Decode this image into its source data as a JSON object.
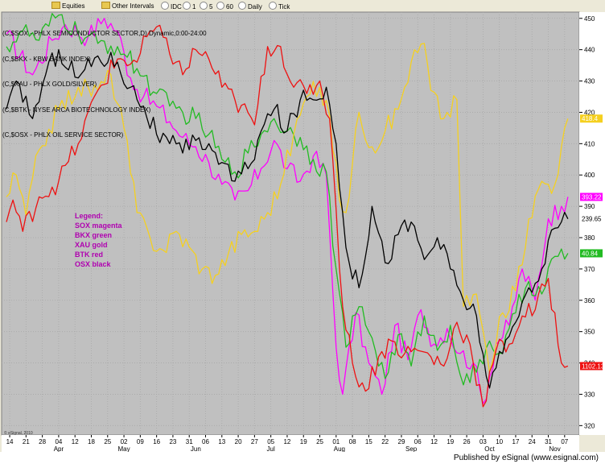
{
  "toolbar": {
    "equities": "Equities",
    "other_intervals": "Other Intervals",
    "idc": "IDC",
    "i1": "1",
    "i5": "5",
    "i60": "60",
    "daily": "Daily",
    "tick": "Tick"
  },
  "header_lines": [
    "(C,$SOX - PHLX SEMICONDUCTOR SECTOR,D) Dynamic,0:00-24:00",
    "(C,$BKX - KBW BANK INDEX)",
    "(C,$XAU - PHLX GOLD/SILVER)",
    "(C,$BTK - NYSE ARCA BIOTECHNOLOGY INDEX)",
    "(C,$OSX - PHLX OIL SERVICE SECTOR)"
  ],
  "legend": {
    "title": "Legend:",
    "items": [
      "SOX magenta",
      "BKX green",
      "XAU gold",
      "BTK red",
      "OSX black"
    ]
  },
  "signature": "© eSignal, 2010",
  "footer": "Published by eSignal (www.esignal.com)",
  "colors": {
    "plot_bg": "#c0c0c0",
    "SOX": "#ff00ff",
    "BKX": "#22bb22",
    "XAU": "#f5d020",
    "BTK": "#ee1111",
    "OSX": "#000000"
  },
  "chart_data": {
    "type": "line",
    "ylim": [
      317,
      452
    ],
    "y_ticks": [
      320,
      330,
      340,
      350,
      360,
      370,
      380,
      390,
      400,
      410,
      420,
      430,
      440,
      450
    ],
    "x_tick_labels": [
      "14",
      "21",
      "28",
      "04",
      "12",
      "18",
      "25",
      "02",
      "09",
      "16",
      "23",
      "31",
      "06",
      "13",
      "20",
      "27",
      "05",
      "12",
      "19",
      "25",
      "01",
      "08",
      "15",
      "22",
      "29",
      "06",
      "12",
      "19",
      "26",
      "03",
      "10",
      "17",
      "24",
      "31",
      "07"
    ],
    "x_tick_positions": [
      1,
      6,
      11,
      16,
      21,
      26,
      31,
      36,
      41,
      46,
      51,
      56,
      61,
      66,
      71,
      76,
      81,
      86,
      91,
      96,
      101,
      106,
      111,
      116,
      121,
      126,
      131,
      136,
      141,
      146,
      151,
      156,
      161,
      166,
      171
    ],
    "month_labels": [
      {
        "label": "Apr",
        "at": 16
      },
      {
        "label": "May",
        "at": 36
      },
      {
        "label": "Jun",
        "at": 58
      },
      {
        "label": "Jul",
        "at": 81
      },
      {
        "label": "Aug",
        "at": 102
      },
      {
        "label": "Sep",
        "at": 124
      },
      {
        "label": "Oct",
        "at": 148
      },
      {
        "label": "Nov",
        "at": 168
      }
    ],
    "x_range": [
      0,
      174
    ],
    "series": [
      {
        "name": "SOX",
        "color": "#ff00ff",
        "end_label": "393.22",
        "points": [
          [
            0,
            445
          ],
          [
            8,
            432
          ],
          [
            14,
            443
          ],
          [
            18,
            448
          ],
          [
            25,
            444
          ],
          [
            30,
            450
          ],
          [
            34,
            446
          ],
          [
            38,
            431
          ],
          [
            42,
            425
          ],
          [
            46,
            422
          ],
          [
            50,
            417
          ],
          [
            54,
            412
          ],
          [
            58,
            409
          ],
          [
            62,
            404
          ],
          [
            66,
            397
          ],
          [
            70,
            392
          ],
          [
            74,
            395
          ],
          [
            78,
            402
          ],
          [
            82,
            411
          ],
          [
            86,
            402
          ],
          [
            90,
            398
          ],
          [
            94,
            406
          ],
          [
            98,
            400
          ],
          [
            101,
            345
          ],
          [
            103,
            330
          ],
          [
            107,
            356
          ],
          [
            111,
            340
          ],
          [
            115,
            330
          ],
          [
            119,
            352
          ],
          [
            123,
            341
          ],
          [
            127,
            357
          ],
          [
            131,
            346
          ],
          [
            135,
            351
          ],
          [
            139,
            343
          ],
          [
            143,
            340
          ],
          [
            146,
            327
          ],
          [
            150,
            346
          ],
          [
            154,
            352
          ],
          [
            158,
            370
          ],
          [
            162,
            360
          ],
          [
            166,
            386
          ],
          [
            170,
            390
          ],
          [
            172,
            393
          ]
        ]
      },
      {
        "name": "BKX",
        "color": "#22bb22",
        "end_label": "40.84",
        "points": [
          [
            0,
            441
          ],
          [
            5,
            446
          ],
          [
            10,
            443
          ],
          [
            16,
            451
          ],
          [
            22,
            445
          ],
          [
            28,
            442
          ],
          [
            34,
            441
          ],
          [
            40,
            434
          ],
          [
            46,
            426
          ],
          [
            50,
            422
          ],
          [
            54,
            420
          ],
          [
            58,
            418
          ],
          [
            62,
            413
          ],
          [
            66,
            405
          ],
          [
            70,
            401
          ],
          [
            74,
            407
          ],
          [
            78,
            413
          ],
          [
            82,
            418
          ],
          [
            86,
            414
          ],
          [
            90,
            412
          ],
          [
            94,
            405
          ],
          [
            98,
            401
          ],
          [
            101,
            370
          ],
          [
            104,
            345
          ],
          [
            108,
            358
          ],
          [
            112,
            348
          ],
          [
            116,
            335
          ],
          [
            120,
            349
          ],
          [
            124,
            339
          ],
          [
            128,
            355
          ],
          [
            132,
            344
          ],
          [
            136,
            352
          ],
          [
            140,
            333
          ],
          [
            144,
            337
          ],
          [
            148,
            347
          ],
          [
            152,
            343
          ],
          [
            156,
            356
          ],
          [
            160,
            366
          ],
          [
            164,
            362
          ],
          [
            168,
            374
          ],
          [
            172,
            375
          ]
        ]
      },
      {
        "name": "XAU",
        "color": "#f5d020",
        "end_label": "418.4",
        "points": [
          [
            0,
            393
          ],
          [
            3,
            400
          ],
          [
            6,
            387
          ],
          [
            10,
            408
          ],
          [
            16,
            421
          ],
          [
            22,
            428
          ],
          [
            28,
            427
          ],
          [
            32,
            432
          ],
          [
            36,
            415
          ],
          [
            40,
            388
          ],
          [
            44,
            380
          ],
          [
            48,
            376
          ],
          [
            52,
            382
          ],
          [
            56,
            377
          ],
          [
            60,
            370
          ],
          [
            64,
            368
          ],
          [
            68,
            375
          ],
          [
            72,
            381
          ],
          [
            76,
            382
          ],
          [
            80,
            388
          ],
          [
            84,
            397
          ],
          [
            88,
            413
          ],
          [
            92,
            425
          ],
          [
            96,
            428
          ],
          [
            99,
            419
          ],
          [
            102,
            392
          ],
          [
            104,
            388
          ],
          [
            108,
            420
          ],
          [
            112,
            409
          ],
          [
            116,
            414
          ],
          [
            120,
            421
          ],
          [
            124,
            436
          ],
          [
            128,
            442
          ],
          [
            130,
            427
          ],
          [
            134,
            418
          ],
          [
            138,
            424
          ],
          [
            140,
            358
          ],
          [
            144,
            362
          ],
          [
            148,
            337
          ],
          [
            152,
            356
          ],
          [
            156,
            363
          ],
          [
            160,
            386
          ],
          [
            164,
            398
          ],
          [
            168,
            397
          ],
          [
            170,
            409
          ],
          [
            172,
            418
          ]
        ]
      },
      {
        "name": "BTK",
        "color": "#ee1111",
        "end_label": "1102.13",
        "points": [
          [
            0,
            385
          ],
          [
            2,
            392
          ],
          [
            5,
            382
          ],
          [
            10,
            393
          ],
          [
            16,
            398
          ],
          [
            22,
            410
          ],
          [
            28,
            427
          ],
          [
            34,
            437
          ],
          [
            40,
            436
          ],
          [
            44,
            446
          ],
          [
            48,
            444
          ],
          [
            54,
            432
          ],
          [
            58,
            440
          ],
          [
            62,
            437
          ],
          [
            66,
            428
          ],
          [
            70,
            424
          ],
          [
            76,
            416
          ],
          [
            80,
            441
          ],
          [
            84,
            441
          ],
          [
            88,
            428
          ],
          [
            92,
            426
          ],
          [
            96,
            430
          ],
          [
            99,
            418
          ],
          [
            101,
            389
          ],
          [
            103,
            358
          ],
          [
            106,
            340
          ],
          [
            110,
            331
          ],
          [
            114,
            342
          ],
          [
            118,
            347
          ],
          [
            122,
            343
          ],
          [
            126,
            344
          ],
          [
            130,
            342
          ],
          [
            134,
            339
          ],
          [
            138,
            353
          ],
          [
            142,
            346
          ],
          [
            146,
            326
          ],
          [
            150,
            344
          ],
          [
            154,
            346
          ],
          [
            158,
            355
          ],
          [
            162,
            357
          ],
          [
            166,
            367
          ],
          [
            170,
            340
          ],
          [
            172,
            339
          ]
        ]
      },
      {
        "name": "OSX",
        "color": "#000000",
        "end_label": "239.65",
        "points": [
          [
            0,
            421
          ],
          [
            4,
            429
          ],
          [
            8,
            418
          ],
          [
            12,
            432
          ],
          [
            16,
            440
          ],
          [
            22,
            431
          ],
          [
            28,
            438
          ],
          [
            34,
            436
          ],
          [
            38,
            428
          ],
          [
            42,
            422
          ],
          [
            46,
            413
          ],
          [
            50,
            410
          ],
          [
            54,
            407
          ],
          [
            58,
            411
          ],
          [
            62,
            410
          ],
          [
            66,
            404
          ],
          [
            70,
            398
          ],
          [
            74,
            402
          ],
          [
            78,
            414
          ],
          [
            82,
            421
          ],
          [
            86,
            414
          ],
          [
            90,
            424
          ],
          [
            94,
            424
          ],
          [
            98,
            428
          ],
          [
            101,
            410
          ],
          [
            103,
            388
          ],
          [
            105,
            372
          ],
          [
            108,
            364
          ],
          [
            112,
            390
          ],
          [
            116,
            372
          ],
          [
            120,
            381
          ],
          [
            124,
            385
          ],
          [
            128,
            373
          ],
          [
            132,
            380
          ],
          [
            136,
            370
          ],
          [
            140,
            360
          ],
          [
            144,
            355
          ],
          [
            148,
            332
          ],
          [
            152,
            343
          ],
          [
            156,
            353
          ],
          [
            160,
            364
          ],
          [
            164,
            370
          ],
          [
            168,
            383
          ],
          [
            170,
            385
          ],
          [
            172,
            386
          ]
        ]
      }
    ]
  }
}
